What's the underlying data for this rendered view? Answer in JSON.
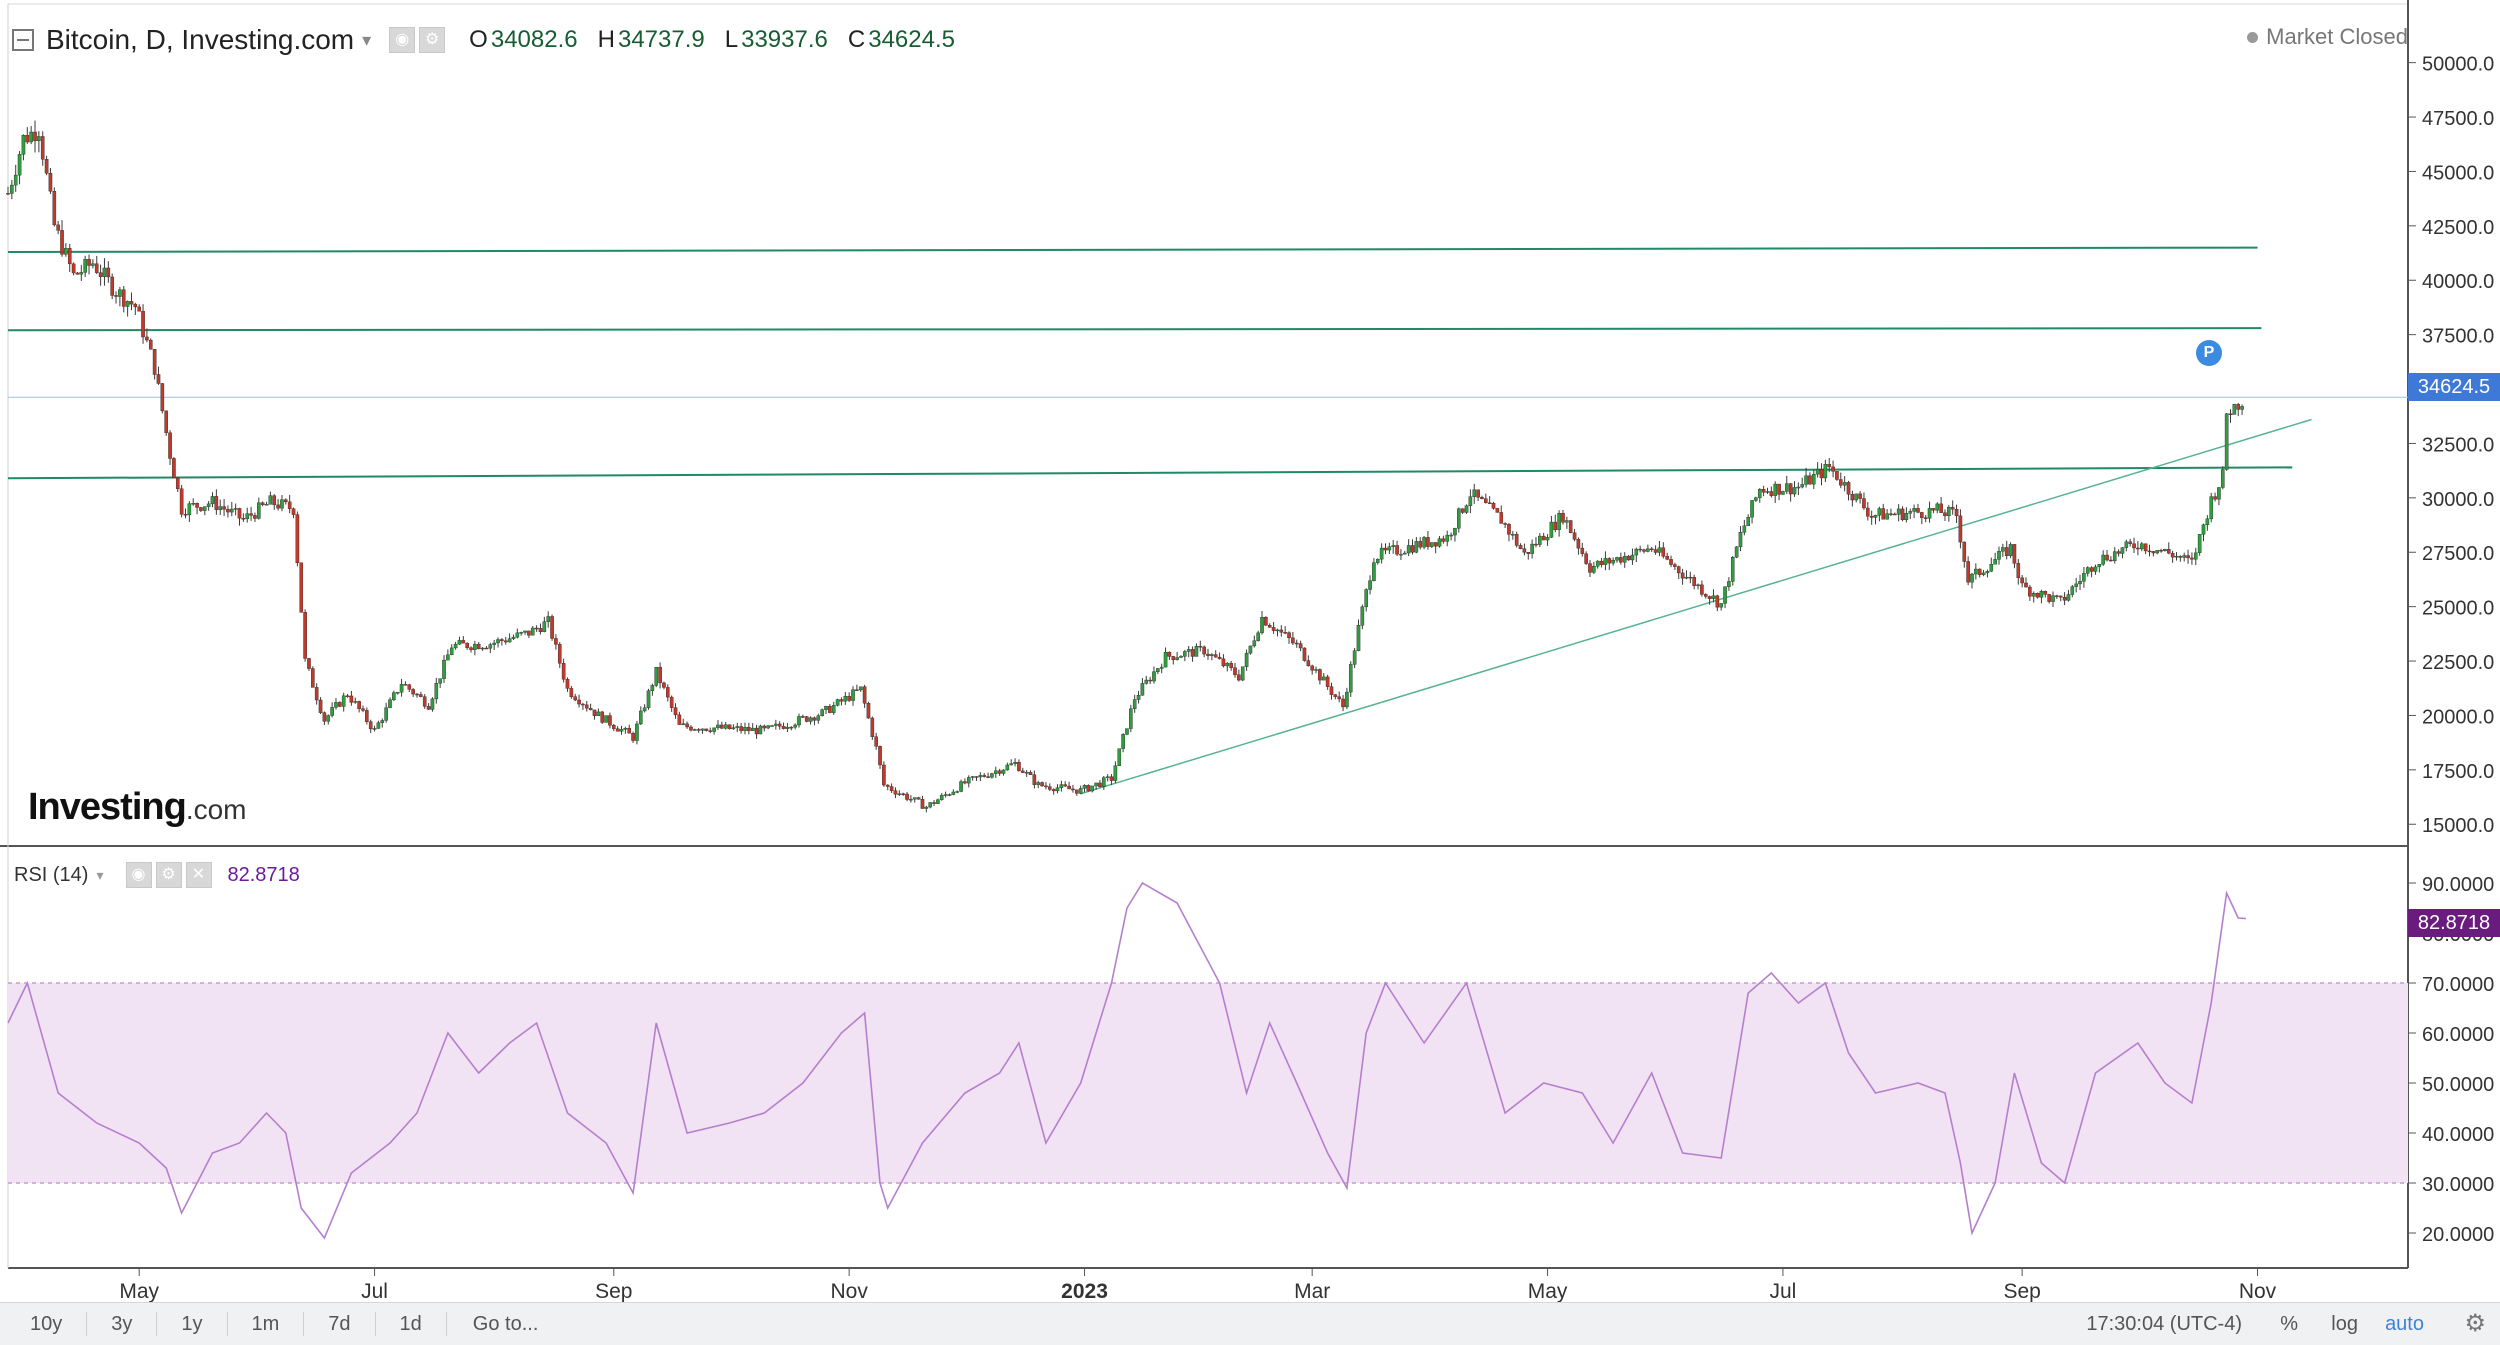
{
  "chart": {
    "legend": {
      "symbol_title": "Bitcoin, D, Investing.com",
      "open_label": "O",
      "open": "34082.6",
      "high_label": "H",
      "high": "34737.9",
      "low_label": "L",
      "low": "33937.6",
      "close_label": "C",
      "close": "34624.5"
    },
    "market_status": "Market Closed",
    "brand": {
      "name": "Investing",
      "suffix": ".com"
    },
    "last_price_tag": "34624.5",
    "pin_label": "P",
    "rsi_legend": {
      "name": "RSI (14)",
      "value": "82.8718"
    },
    "rsi_tag": "82.8718"
  },
  "bottombar": {
    "ranges": [
      "10y",
      "3y",
      "1y",
      "1m",
      "7d",
      "1d"
    ],
    "goto": "Go to...",
    "clock": "17:30:04 (UTC-4)",
    "pct": "%",
    "log": "log",
    "auto": "auto"
  },
  "colors": {
    "up": "#2e9e3e",
    "down": "#c0392b",
    "trendline": "#1f8a64",
    "rsi_line": "#b57fce",
    "rsi_band": "#f1e3f3",
    "last_price": "#3f79d8"
  },
  "chart_data": [
    {
      "type": "candlestick",
      "title": "Bitcoin, D, Investing.com",
      "x_ticks": [
        "May",
        "Jul",
        "Sep",
        "Nov",
        "2023",
        "Mar",
        "May",
        "Jul",
        "Sep",
        "Nov"
      ],
      "x_tick_dates": [
        "2022-05-01",
        "2022-07-01",
        "2022-09-01",
        "2022-11-01",
        "2023-01-01",
        "2023-03-01",
        "2023-05-01",
        "2023-07-01",
        "2023-09-01",
        "2023-11-01"
      ],
      "y_ticks": [
        15000,
        17500,
        20000,
        22500,
        25000,
        27500,
        30000,
        32500,
        35000,
        37500,
        40000,
        42500,
        45000,
        47500,
        50000
      ],
      "y_tick_labels": [
        "15000.0",
        "17500.0",
        "20000.0",
        "22500.0",
        "25000.0",
        "27500.0",
        "30000.0",
        "32500.0",
        "35000.0",
        "37500.0",
        "40000.0",
        "42500.0",
        "45000.0",
        "47500.0",
        "50000.0"
      ],
      "ylim": [
        14000,
        51500
      ],
      "xlim": [
        "2022-03-28",
        "2023-12-10"
      ],
      "close_series": [
        [
          "2022-03-28",
          44000
        ],
        [
          "2022-04-01",
          46500
        ],
        [
          "2022-04-05",
          47000
        ],
        [
          "2022-04-09",
          42500
        ],
        [
          "2022-04-14",
          40200
        ],
        [
          "2022-04-19",
          40800
        ],
        [
          "2022-04-25",
          39500
        ],
        [
          "2022-04-30",
          38800
        ],
        [
          "2022-05-05",
          36000
        ],
        [
          "2022-05-09",
          32000
        ],
        [
          "2022-05-12",
          29500
        ],
        [
          "2022-05-20",
          29800
        ],
        [
          "2022-05-28",
          29000
        ],
        [
          "2022-06-04",
          29800
        ],
        [
          "2022-06-10",
          29500
        ],
        [
          "2022-06-13",
          22500
        ],
        [
          "2022-06-18",
          19800
        ],
        [
          "2022-06-24",
          21000
        ],
        [
          "2022-07-01",
          19300
        ],
        [
          "2022-07-08",
          21500
        ],
        [
          "2022-07-15",
          20500
        ],
        [
          "2022-07-21",
          23200
        ],
        [
          "2022-07-31",
          23300
        ],
        [
          "2022-08-10",
          23800
        ],
        [
          "2022-08-15",
          24300
        ],
        [
          "2022-08-20",
          21200
        ],
        [
          "2022-08-28",
          20000
        ],
        [
          "2022-09-06",
          19000
        ],
        [
          "2022-09-12",
          22000
        ],
        [
          "2022-09-18",
          19500
        ],
        [
          "2022-09-30",
          19400
        ],
        [
          "2022-10-10",
          19300
        ],
        [
          "2022-10-25",
          20100
        ],
        [
          "2022-11-04",
          21200
        ],
        [
          "2022-11-08",
          18500
        ],
        [
          "2022-11-10",
          16800
        ],
        [
          "2022-11-21",
          15800
        ],
        [
          "2022-12-01",
          16900
        ],
        [
          "2022-12-14",
          17800
        ],
        [
          "2022-12-20",
          16800
        ],
        [
          "2022-12-31",
          16550
        ],
        [
          "2023-01-08",
          17100
        ],
        [
          "2023-01-14",
          20800
        ],
        [
          "2023-01-22",
          22700
        ],
        [
          "2023-02-01",
          23000
        ],
        [
          "2023-02-10",
          21800
        ],
        [
          "2023-02-16",
          24500
        ],
        [
          "2023-02-25",
          23200
        ],
        [
          "2023-03-09",
          20400
        ],
        [
          "2023-03-13",
          24000
        ],
        [
          "2023-03-17",
          27300
        ],
        [
          "2023-03-25",
          27700
        ],
        [
          "2023-04-05",
          28200
        ],
        [
          "2023-04-11",
          30200
        ],
        [
          "2023-04-19",
          29000
        ],
        [
          "2023-04-25",
          27400
        ],
        [
          "2023-05-05",
          29200
        ],
        [
          "2023-05-12",
          26800
        ],
        [
          "2023-05-28",
          27700
        ],
        [
          "2023-06-10",
          25800
        ],
        [
          "2023-06-15",
          25100
        ],
        [
          "2023-06-20",
          28300
        ],
        [
          "2023-06-25",
          30400
        ],
        [
          "2023-07-05",
          30500
        ],
        [
          "2023-07-13",
          31400
        ],
        [
          "2023-07-24",
          29200
        ],
        [
          "2023-08-10",
          29400
        ],
        [
          "2023-08-15",
          29200
        ],
        [
          "2023-08-18",
          26200
        ],
        [
          "2023-08-29",
          27700
        ],
        [
          "2023-09-01",
          25900
        ],
        [
          "2023-09-11",
          25200
        ],
        [
          "2023-09-20",
          27100
        ],
        [
          "2023-10-01",
          27900
        ],
        [
          "2023-10-10",
          27400
        ],
        [
          "2023-10-15",
          27000
        ],
        [
          "2023-10-20",
          29900
        ],
        [
          "2023-10-23",
          31000
        ],
        [
          "2023-10-24",
          33900
        ],
        [
          "2023-10-26",
          34200
        ],
        [
          "2023-10-29",
          34624.5
        ]
      ],
      "horizontal_lines": [
        {
          "from": "2022-03-28",
          "to": "2023-11-01",
          "y_start": 41300,
          "y_end": 41500
        },
        {
          "from": "2022-03-28",
          "to": "2023-11-02",
          "y_start": 37700,
          "y_end": 37800
        },
        {
          "from": "2022-03-28",
          "to": "2023-11-10",
          "y_start": 30900,
          "y_end": 31400
        }
      ],
      "trendline": {
        "from": [
          "2022-12-31",
          16400
        ],
        "to": [
          "2023-11-15",
          33600
        ]
      },
      "last_price": 34624.5
    },
    {
      "type": "line",
      "title": "RSI (14)",
      "y_ticks": [
        20,
        30,
        40,
        50,
        60,
        70,
        80,
        90
      ],
      "y_tick_labels": [
        "20.0000",
        "30.0000",
        "40.0000",
        "50.0000",
        "60.0000",
        "70.0000",
        "80.0000",
        "90.0000"
      ],
      "ylim": [
        15,
        95
      ],
      "band": [
        30,
        70
      ],
      "series": [
        [
          "2022-03-28",
          62
        ],
        [
          "2022-04-02",
          70
        ],
        [
          "2022-04-10",
          48
        ],
        [
          "2022-04-20",
          42
        ],
        [
          "2022-05-01",
          38
        ],
        [
          "2022-05-08",
          33
        ],
        [
          "2022-05-12",
          24
        ],
        [
          "2022-05-20",
          36
        ],
        [
          "2022-05-27",
          38
        ],
        [
          "2022-06-03",
          44
        ],
        [
          "2022-06-08",
          40
        ],
        [
          "2022-06-12",
          25
        ],
        [
          "2022-06-18",
          19
        ],
        [
          "2022-06-25",
          32
        ],
        [
          "2022-07-05",
          38
        ],
        [
          "2022-07-12",
          44
        ],
        [
          "2022-07-20",
          60
        ],
        [
          "2022-07-28",
          52
        ],
        [
          "2022-08-05",
          58
        ],
        [
          "2022-08-12",
          62
        ],
        [
          "2022-08-20",
          44
        ],
        [
          "2022-08-30",
          38
        ],
        [
          "2022-09-06",
          28
        ],
        [
          "2022-09-12",
          62
        ],
        [
          "2022-09-20",
          40
        ],
        [
          "2022-10-01",
          42
        ],
        [
          "2022-10-10",
          44
        ],
        [
          "2022-10-20",
          50
        ],
        [
          "2022-10-30",
          60
        ],
        [
          "2022-11-05",
          64
        ],
        [
          "2022-11-09",
          30
        ],
        [
          "2022-11-11",
          25
        ],
        [
          "2022-11-20",
          38
        ],
        [
          "2022-12-01",
          48
        ],
        [
          "2022-12-10",
          52
        ],
        [
          "2022-12-15",
          58
        ],
        [
          "2022-12-22",
          38
        ],
        [
          "2022-12-31",
          50
        ],
        [
          "2023-01-08",
          70
        ],
        [
          "2023-01-12",
          85
        ],
        [
          "2023-01-16",
          90
        ],
        [
          "2023-01-25",
          86
        ],
        [
          "2023-02-05",
          70
        ],
        [
          "2023-02-12",
          48
        ],
        [
          "2023-02-18",
          62
        ],
        [
          "2023-02-25",
          50
        ],
        [
          "2023-03-05",
          36
        ],
        [
          "2023-03-10",
          29
        ],
        [
          "2023-03-15",
          60
        ],
        [
          "2023-03-20",
          70
        ],
        [
          "2023-03-30",
          58
        ],
        [
          "2023-04-10",
          70
        ],
        [
          "2023-04-20",
          44
        ],
        [
          "2023-04-30",
          50
        ],
        [
          "2023-05-10",
          48
        ],
        [
          "2023-05-18",
          38
        ],
        [
          "2023-05-28",
          52
        ],
        [
          "2023-06-05",
          36
        ],
        [
          "2023-06-15",
          35
        ],
        [
          "2023-06-22",
          68
        ],
        [
          "2023-06-28",
          72
        ],
        [
          "2023-07-05",
          66
        ],
        [
          "2023-07-12",
          70
        ],
        [
          "2023-07-18",
          56
        ],
        [
          "2023-07-25",
          48
        ],
        [
          "2023-08-05",
          50
        ],
        [
          "2023-08-12",
          48
        ],
        [
          "2023-08-16",
          34
        ],
        [
          "2023-08-19",
          20
        ],
        [
          "2023-08-25",
          30
        ],
        [
          "2023-08-30",
          52
        ],
        [
          "2023-09-06",
          34
        ],
        [
          "2023-09-12",
          30
        ],
        [
          "2023-09-20",
          52
        ],
        [
          "2023-10-01",
          58
        ],
        [
          "2023-10-08",
          50
        ],
        [
          "2023-10-15",
          46
        ],
        [
          "2023-10-20",
          66
        ],
        [
          "2023-10-24",
          88
        ],
        [
          "2023-10-27",
          83
        ],
        [
          "2023-10-29",
          82.87
        ]
      ]
    }
  ]
}
